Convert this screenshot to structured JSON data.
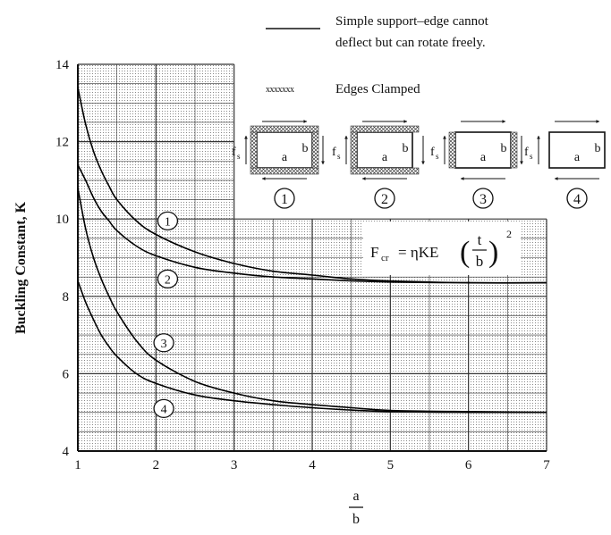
{
  "chart_data": {
    "type": "line",
    "xlabel_top": "a",
    "xlabel_bottom": "b",
    "ylabel": "Buckling Constant, K",
    "xlim": [
      1,
      7
    ],
    "ylim": [
      4,
      14
    ],
    "x_ticks": [
      "1",
      "2",
      "3",
      "4",
      "5",
      "6",
      "7"
    ],
    "y_ticks": [
      "4",
      "6",
      "8",
      "10",
      "12",
      "14"
    ],
    "grid": true,
    "legend": {
      "simple_support": "Simple support–edge cannot",
      "simple_support_line2": "deflect but can rotate freely.",
      "clamped_symbol": "xxxxxxx",
      "clamped": "Edges Clamped"
    },
    "formula": {
      "lhs": "F",
      "lhs_sub": "cr",
      "rhs": "= ηKE",
      "frac_top": "t",
      "frac_bottom": "b",
      "exponent": "2"
    },
    "insets": [
      {
        "number": "1",
        "load_label": "f",
        "load_sub": "s",
        "a_label": "a",
        "b_label": "b"
      },
      {
        "number": "2",
        "load_label": "f",
        "load_sub": "s",
        "a_label": "a",
        "b_label": "b"
      },
      {
        "number": "3",
        "load_label": "f",
        "load_sub": "s",
        "a_label": "a",
        "b_label": "b"
      },
      {
        "number": "4",
        "load_label": "f",
        "load_sub": "s",
        "a_label": "a",
        "b_label": "b"
      }
    ],
    "series": [
      {
        "label": "1",
        "x": [
          1.0,
          1.1,
          1.2,
          1.3,
          1.4,
          1.5,
          1.75,
          2.0,
          2.5,
          3.0,
          3.5,
          4.0,
          4.5,
          5.0,
          6.0,
          7.0
        ],
        "values": [
          13.4,
          12.45,
          11.75,
          11.25,
          10.85,
          10.5,
          9.95,
          9.6,
          9.15,
          8.85,
          8.65,
          8.55,
          8.45,
          8.4,
          8.35,
          8.35
        ]
      },
      {
        "label": "2",
        "x": [
          1.0,
          1.1,
          1.2,
          1.3,
          1.4,
          1.5,
          1.75,
          2.0,
          2.5,
          3.0,
          3.5,
          4.0,
          4.5,
          5.0,
          6.0,
          7.0
        ],
        "values": [
          11.4,
          11.0,
          10.55,
          10.2,
          9.95,
          9.7,
          9.3,
          9.05,
          8.75,
          8.6,
          8.5,
          8.45,
          8.4,
          8.37,
          8.35,
          8.35
        ]
      },
      {
        "label": "3",
        "x": [
          1.0,
          1.1,
          1.2,
          1.3,
          1.4,
          1.5,
          1.75,
          2.0,
          2.5,
          3.0,
          3.5,
          4.0,
          4.5,
          5.0,
          6.0,
          7.0
        ],
        "values": [
          10.8,
          9.75,
          9.0,
          8.45,
          8.0,
          7.6,
          6.85,
          6.35,
          5.8,
          5.5,
          5.3,
          5.2,
          5.12,
          5.05,
          5.02,
          5.0
        ]
      },
      {
        "label": "4",
        "x": [
          1.0,
          1.1,
          1.2,
          1.3,
          1.4,
          1.5,
          1.75,
          2.0,
          2.5,
          3.0,
          3.5,
          4.0,
          4.5,
          5.0,
          6.0,
          7.0
        ],
        "values": [
          8.4,
          7.85,
          7.4,
          7.0,
          6.7,
          6.45,
          6.0,
          5.75,
          5.45,
          5.3,
          5.2,
          5.12,
          5.06,
          5.02,
          5.0,
          5.0
        ]
      }
    ],
    "curve_label_positions": [
      {
        "label": "1",
        "x": 2.15,
        "y": 9.95
      },
      {
        "label": "2",
        "x": 2.15,
        "y": 8.45
      },
      {
        "label": "3",
        "x": 2.1,
        "y": 6.8
      },
      {
        "label": "4",
        "x": 2.1,
        "y": 5.1
      }
    ]
  }
}
